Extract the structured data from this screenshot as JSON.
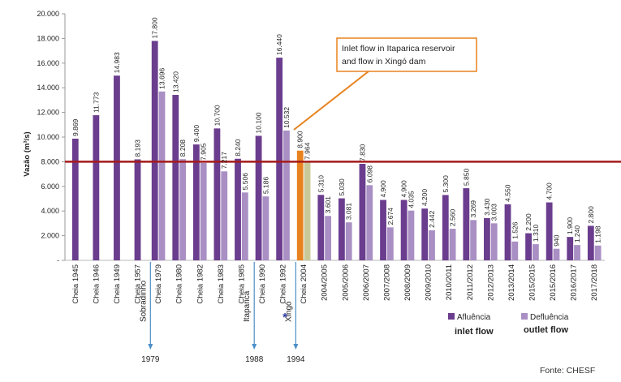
{
  "chart_data": {
    "type": "bar",
    "ylabel": "Vazão (m³/s)",
    "ylim": [
      0,
      20000
    ],
    "y_ticks": [
      "-",
      "2.000",
      "4.000",
      "6.000",
      "8.000",
      "10.000",
      "12.000",
      "14.000",
      "16.000",
      "18.000",
      "20.000"
    ],
    "categories": [
      "Cheia 1945",
      "Cheia 1946",
      "Cheia 1949",
      "Cheia 1957",
      "Cheia 1979",
      "Cheia 1980",
      "Cheia 1982",
      "Cheia 1983",
      "Cheia 1985",
      "Cheia 1990",
      "Cheia 1992",
      "Cheia 2004",
      "2004/2005",
      "2005/2006",
      "2006/2007",
      "2007/2008",
      "2008/2009",
      "2009/2010",
      "2010/2011",
      "2011/2012",
      "2012/2013",
      "2013/2014",
      "2015/2015",
      "2015/2016",
      "2016/2017",
      "2017/2018"
    ],
    "series": [
      {
        "name": "Afluência",
        "color": "#6b3d8e",
        "values": [
          9869,
          11773,
          14983,
          8193,
          17800,
          13420,
          9400,
          10700,
          8240,
          10100,
          16440,
          8900,
          5310,
          5030,
          7830,
          4900,
          4900,
          4200,
          5300,
          5850,
          3430,
          4550,
          2200,
          4700,
          1900,
          2800
        ],
        "labels": [
          "9.869",
          "11.773",
          "14.983",
          "8.193",
          "17.800",
          "13.420",
          "9.400",
          "10.700",
          "8.240",
          "10.100",
          "16.440",
          "8.900",
          "5.310",
          "5.030",
          "7.830",
          "4.900",
          "4.900",
          "4.200",
          "5.300",
          "5.850",
          "3.430",
          "4.550",
          "2.200",
          "4.700",
          "1.900",
          "2.800"
        ]
      },
      {
        "name": "Defluência",
        "color": "#a98fc3",
        "values": [
          null,
          null,
          null,
          null,
          13696,
          8208,
          7905,
          7217,
          5506,
          5186,
          10532,
          7964,
          3601,
          3081,
          6098,
          2674,
          4035,
          2442,
          2560,
          3269,
          3003,
          1526,
          1310,
          940,
          1240,
          1198
        ],
        "labels": [
          null,
          null,
          null,
          null,
          "13.696",
          "8.208",
          "7.905",
          "7.217",
          "5.506",
          "5.186",
          "10.532",
          "7.964",
          "3.601",
          "3.081",
          "6.098",
          "2.674",
          "4.035",
          "2.442",
          "2.560",
          "3.269",
          "3.003",
          "1.526",
          "1.310",
          "940",
          "1.240",
          "1.198"
        ]
      }
    ],
    "highlight": {
      "category": "Cheia 2004",
      "inflow_color": "#e8821e",
      "outflow_color": "#c8c89a"
    },
    "reference_line": {
      "value": 8000,
      "color": "#a51a1a"
    },
    "legend": {
      "inflow_label": "Afluência",
      "outflow_label": "Defluência",
      "inflow_en": "inlet flow",
      "outflow_en": "outlet flow"
    },
    "callout": {
      "line1": "Inlet flow in Itaparica reservoir",
      "line2": "and flow in Xingó dam",
      "border_color": "#e8821e",
      "marker": "*"
    },
    "events": [
      {
        "name": "Sobradinho",
        "year": "1979",
        "after_category": "Cheia 1957"
      },
      {
        "name": "Itaparica",
        "year": "1988",
        "after_category": "Cheia 1985"
      },
      {
        "name": "Xingó",
        "year": "1994",
        "after_category": "Cheia 1992"
      }
    ],
    "arrow_color": "#4a8fc8",
    "source": "Fonte: CHESF"
  }
}
